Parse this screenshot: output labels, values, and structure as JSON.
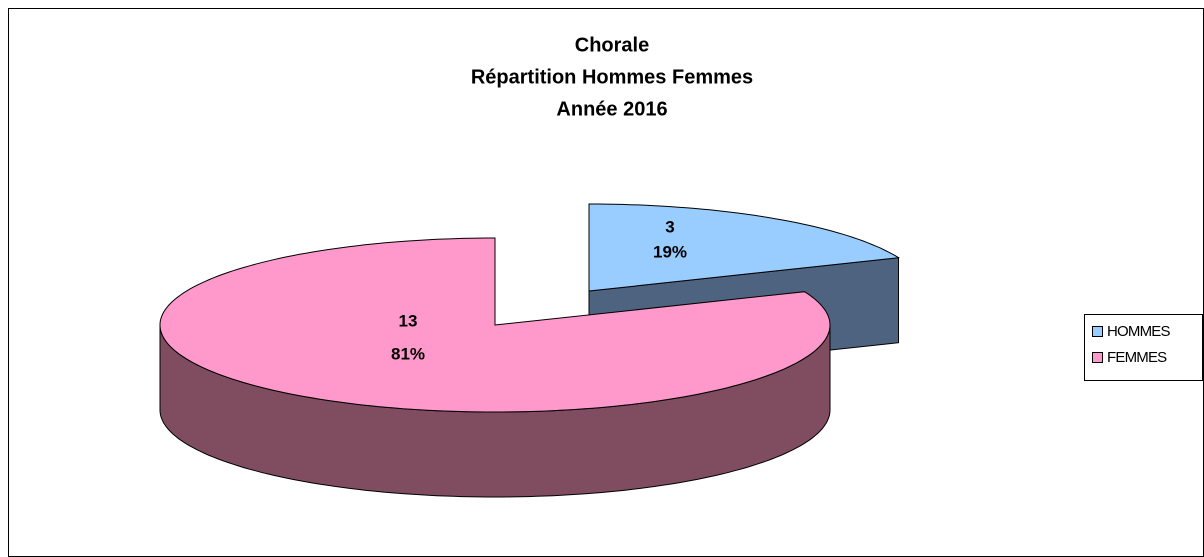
{
  "chart_data": {
    "type": "pie3d",
    "title": [
      "Chorale",
      "Répartition Hommes Femmes",
      "Année 2016"
    ],
    "categories": [
      "HOMMES",
      "FEMMES"
    ],
    "values": [
      3,
      13
    ],
    "percent_labels": [
      "19%",
      "81%"
    ],
    "colors": [
      "#99ccff",
      "#ff99cc"
    ],
    "side_colors": [
      "#4d6380",
      "#804c60"
    ],
    "legend": "right"
  }
}
